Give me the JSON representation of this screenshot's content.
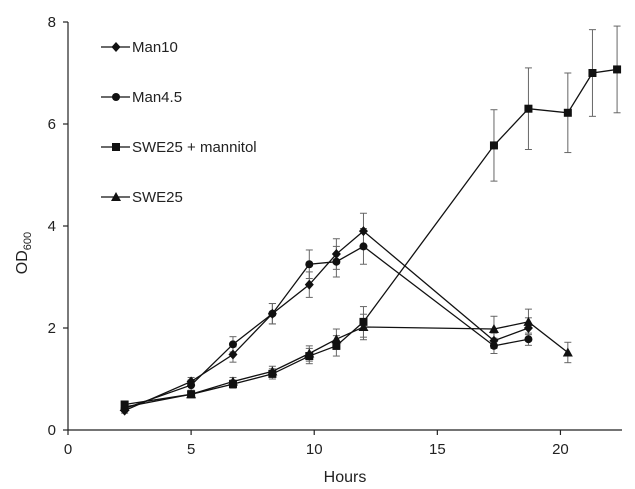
{
  "chart_data": {
    "type": "line",
    "xlabel": "Hours",
    "ylabel_main": "OD",
    "ylabel_sub": "600",
    "xlim": [
      0,
      22.5
    ],
    "ylim": [
      0,
      8
    ],
    "x_ticks": [
      0,
      5,
      10,
      15,
      20
    ],
    "y_ticks": [
      0,
      2,
      4,
      6,
      8
    ],
    "grid": false,
    "legend_position": "top-left",
    "series": [
      {
        "name": "Man10",
        "marker": "diamond",
        "x": [
          2.3,
          5,
          6.7,
          8.3,
          9.8,
          10.9,
          12,
          17.3,
          18.7
        ],
        "y": [
          0.38,
          0.95,
          1.48,
          2.28,
          2.85,
          3.45,
          3.9,
          1.75,
          2.0
        ],
        "err": [
          0.05,
          0.08,
          0.15,
          0.2,
          0.25,
          0.3,
          0.35,
          0.15,
          0.2
        ]
      },
      {
        "name": "Man4.5",
        "marker": "circle",
        "x": [
          2.3,
          5,
          6.7,
          8.3,
          9.8,
          10.9,
          12,
          17.3,
          18.7
        ],
        "y": [
          0.42,
          0.88,
          1.68,
          2.28,
          3.25,
          3.3,
          3.6,
          1.65,
          1.78
        ],
        "err": [
          0.05,
          0.1,
          0.15,
          0.2,
          0.28,
          0.3,
          0.35,
          0.15,
          0.12
        ]
      },
      {
        "name": "SWE25 + mannitol",
        "marker": "square",
        "x": [
          2.3,
          5,
          6.7,
          8.3,
          9.8,
          10.9,
          12,
          17.3,
          18.7,
          20.3,
          21.3,
          22.3
        ],
        "y": [
          0.5,
          0.7,
          0.9,
          1.1,
          1.45,
          1.65,
          2.12,
          5.58,
          6.3,
          6.22,
          7.0,
          7.07
        ],
        "err": [
          0.05,
          0.06,
          0.08,
          0.1,
          0.15,
          0.2,
          0.3,
          0.7,
          0.8,
          0.78,
          0.85,
          0.85
        ]
      },
      {
        "name": "SWE25",
        "marker": "triangle",
        "x": [
          2.3,
          5,
          6.7,
          8.3,
          9.8,
          10.9,
          12,
          17.3,
          18.7,
          20.3
        ],
        "y": [
          0.45,
          0.7,
          0.95,
          1.15,
          1.5,
          1.78,
          2.02,
          1.98,
          2.12,
          1.52
        ],
        "err": [
          0.05,
          0.06,
          0.08,
          0.1,
          0.15,
          0.2,
          0.25,
          0.25,
          0.25,
          0.2
        ]
      }
    ]
  }
}
